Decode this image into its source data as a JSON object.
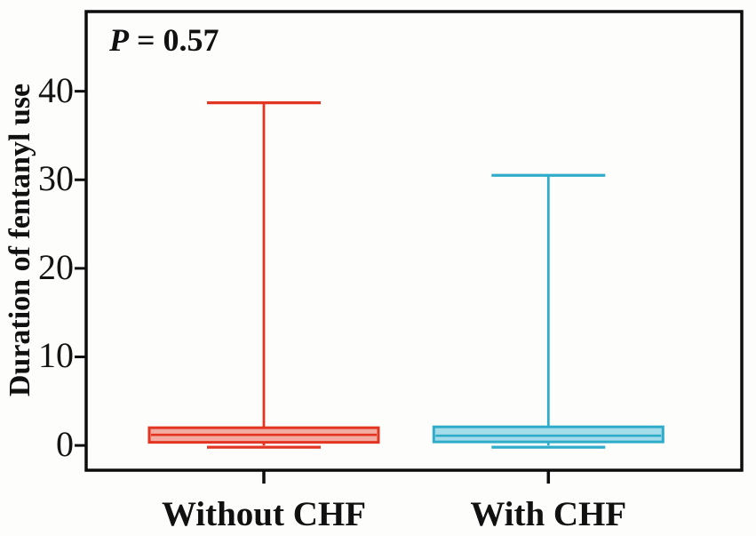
{
  "figure": {
    "annotation": {
      "italic_part": "P",
      "rest_part": " = 0.57"
    }
  },
  "chart_data": {
    "type": "boxplot",
    "title": "",
    "xlabel": "",
    "ylabel": "Duration of fentanyl use",
    "annotation": "P = 0.57",
    "categories": [
      "Without CHF",
      "With CHF"
    ],
    "yticks": [
      0,
      10,
      20,
      30,
      40
    ],
    "ylim": [
      -2.8,
      49.0
    ],
    "grid": false,
    "legend": "none",
    "axis_color": "#0d0d0d",
    "series": [
      {
        "name": "Without CHF",
        "min": 0,
        "q1": 0.35,
        "median": 1.2,
        "q3": 2.0,
        "max": 38.7,
        "line_color": "#e23522",
        "fill_color": "#f3aca1"
      },
      {
        "name": "With CHF",
        "min": 0,
        "q1": 0.4,
        "median": 1.1,
        "q3": 2.1,
        "max": 30.5,
        "line_color": "#30accb",
        "fill_color": "#a5dce9"
      }
    ]
  }
}
